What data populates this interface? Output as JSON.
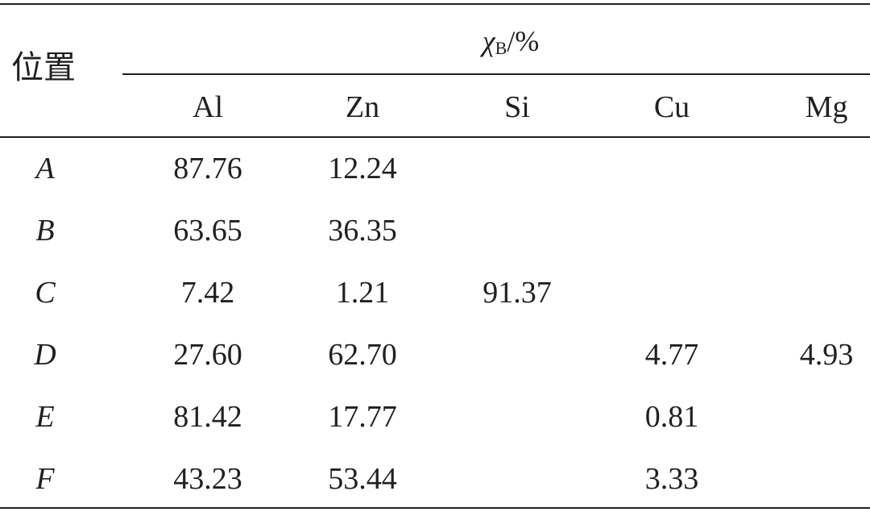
{
  "table": {
    "position_header": "位置",
    "group_header": {
      "symbol": "χ",
      "subscript": "B",
      "unit": "/%"
    },
    "columns": [
      "Al",
      "Zn",
      "Si",
      "Cu",
      "Mg"
    ],
    "rows": [
      {
        "label": "A",
        "values": [
          "87.76",
          "12.24",
          "",
          "",
          ""
        ]
      },
      {
        "label": "B",
        "values": [
          "63.65",
          "36.35",
          "",
          "",
          ""
        ]
      },
      {
        "label": "C",
        "values": [
          "7.42",
          "1.21",
          "91.37",
          "",
          ""
        ]
      },
      {
        "label": "D",
        "values": [
          "27.60",
          "62.70",
          "",
          "4.77",
          "4.93"
        ]
      },
      {
        "label": "E",
        "values": [
          "81.42",
          "17.77",
          "",
          "0.81",
          ""
        ]
      },
      {
        "label": "F",
        "values": [
          "43.23",
          "53.44",
          "",
          "3.33",
          ""
        ]
      }
    ]
  }
}
